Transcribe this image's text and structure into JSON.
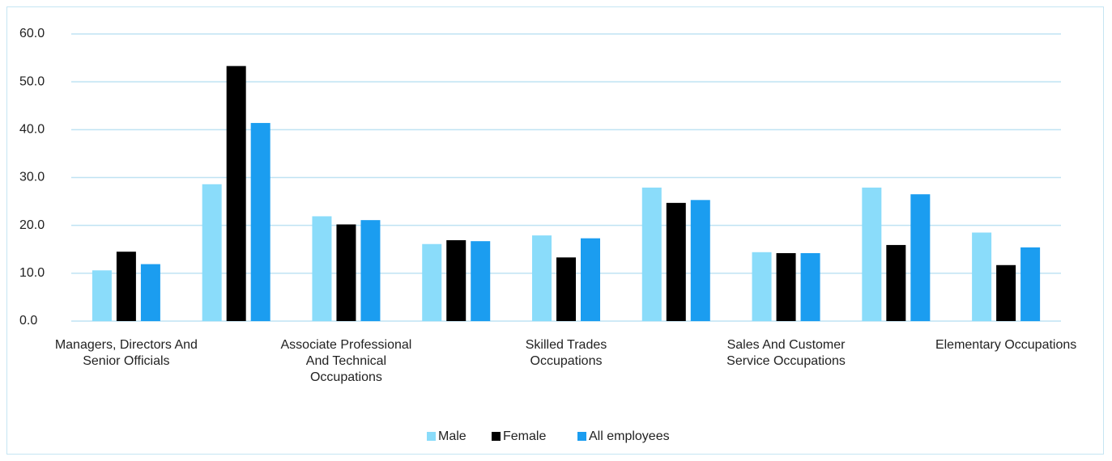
{
  "chart_data": {
    "type": "bar",
    "categories": [
      "Managers, Directors And Senior Officials",
      null,
      "Associate Professional And Technical Occupations",
      null,
      "Skilled Trades Occupations",
      null,
      "Sales And Customer Service Occupations",
      null,
      "Elementary Occupations"
    ],
    "series": [
      {
        "name": "Male",
        "color": "#8adcfa",
        "values": [
          10.6,
          28.6,
          21.9,
          16.1,
          17.9,
          27.9,
          14.4,
          27.9,
          18.5
        ]
      },
      {
        "name": "Female",
        "color": "#000000",
        "values": [
          14.5,
          53.3,
          20.2,
          16.9,
          13.3,
          24.7,
          14.2,
          15.9,
          11.7
        ]
      },
      {
        "name": "All employees",
        "color": "#1b9df0",
        "values": [
          11.9,
          41.4,
          21.1,
          16.7,
          17.3,
          25.3,
          14.2,
          26.5,
          15.4
        ]
      }
    ],
    "ylim": [
      0,
      60
    ],
    "yticks": [
      {
        "value": 0,
        "label": "0.0"
      },
      {
        "value": 10,
        "label": "10.0"
      },
      {
        "value": 20,
        "label": "20.0"
      },
      {
        "value": 30,
        "label": "30.0"
      },
      {
        "value": 40,
        "label": "40.0"
      },
      {
        "value": 50,
        "label": "50.0"
      },
      {
        "value": 60,
        "label": "60.0"
      }
    ],
    "grid": true,
    "legend": "bottom"
  }
}
